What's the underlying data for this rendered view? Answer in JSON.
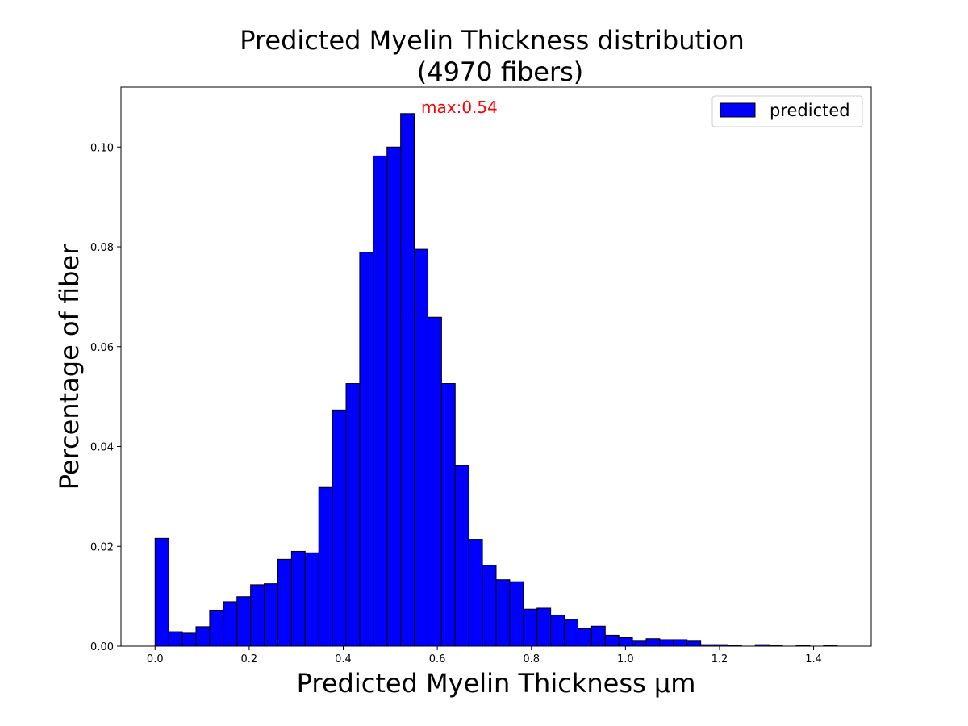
{
  "chart_data": {
    "type": "bar",
    "title_line1": "Predicted Myelin Thickness distribution",
    "title_line2": "(4970 fibers)",
    "xlabel": "Predicted Myelin Thickness μm",
    "ylabel": "Percentage of fiber",
    "xlim": [
      -0.0725,
      1.5225
    ],
    "ylim": [
      0,
      0.112
    ],
    "x_ticks": [
      "0.0",
      "0.2",
      "0.4",
      "0.6",
      "0.8",
      "1.0",
      "1.2",
      "1.4"
    ],
    "y_ticks": [
      "0.00",
      "0.02",
      "0.04",
      "0.06",
      "0.08",
      "0.10"
    ],
    "bin_width": 0.029,
    "bin_start": 0.0,
    "series": [
      {
        "name": "predicted",
        "color": "#0000ff",
        "edge_color": "#000000",
        "values": [
          0.0216,
          0.0029,
          0.0026,
          0.0039,
          0.0072,
          0.0089,
          0.0099,
          0.0123,
          0.0125,
          0.0174,
          0.019,
          0.0187,
          0.0318,
          0.0473,
          0.0526,
          0.0789,
          0.0982,
          0.1,
          0.1067,
          0.0795,
          0.0659,
          0.0526,
          0.0362,
          0.0214,
          0.0162,
          0.0133,
          0.0129,
          0.0074,
          0.0076,
          0.0062,
          0.0054,
          0.0035,
          0.004,
          0.0022,
          0.0017,
          0.001,
          0.0015,
          0.0013,
          0.0013,
          0.001,
          0.0003,
          0.0003,
          0.0001,
          0,
          0.0003,
          0.0001,
          0,
          0.0001,
          0,
          0.0001
        ]
      }
    ],
    "annotation": {
      "text": "max:0.54",
      "color": "#ff0000"
    },
    "legend": {
      "position": "top-right",
      "label": "predicted"
    },
    "grid": false
  }
}
